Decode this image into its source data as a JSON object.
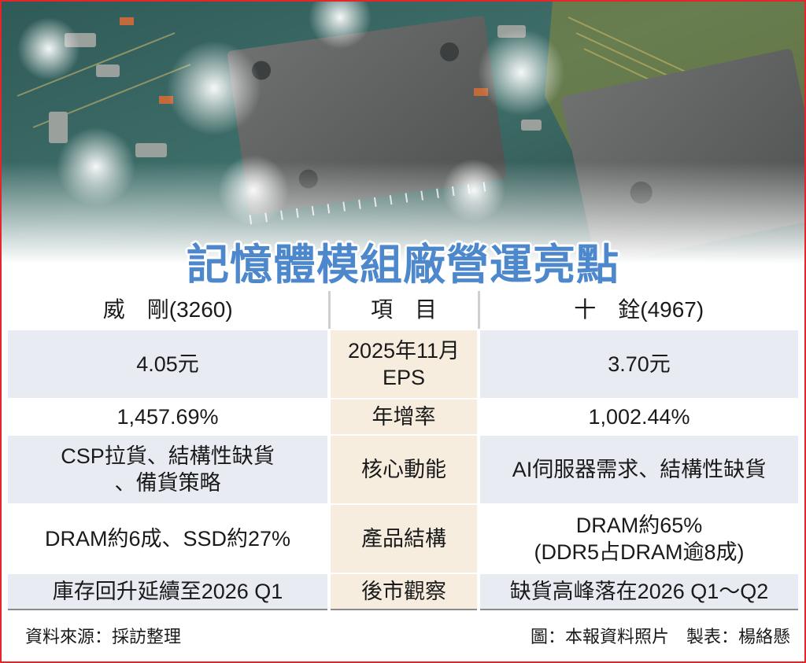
{
  "title": "記憶體模組廠營運亮點",
  "header": {
    "left": "威　剛(3260)",
    "mid": "項　目",
    "right": "十　銓(4967)"
  },
  "rows": [
    {
      "left": [
        "4.05元"
      ],
      "mid": [
        "2025年11月",
        "EPS"
      ],
      "right": [
        "3.70元"
      ]
    },
    {
      "left": [
        "1,457.69%"
      ],
      "mid": [
        "年增率"
      ],
      "right": [
        "1,002.44%"
      ]
    },
    {
      "left": [
        "CSP拉貨、結構性缺貨",
        "、備貨策略"
      ],
      "mid": [
        "核心動能"
      ],
      "right": [
        "AI伺服器需求、結構性缺貨"
      ]
    },
    {
      "left": [
        "DRAM約6成、SSD約27%"
      ],
      "mid": [
        "產品結構"
      ],
      "right": [
        "DRAM約65%",
        "(DDR5占DRAM逾8成)"
      ]
    },
    {
      "left": [
        "庫存回升延續至2026 Q1"
      ],
      "mid": [
        "後市觀察"
      ],
      "right": [
        "缺貨高峰落在2026 Q1～Q2"
      ]
    }
  ],
  "footer": {
    "source": "資料來源：採訪整理",
    "credit": "圖：本報資料照片　製表：楊絡懸"
  },
  "colors": {
    "frame": "#e3262b",
    "title": "#4d87cc",
    "row_shade": "#e8ebf2",
    "mid_column": "#f6eddf"
  }
}
